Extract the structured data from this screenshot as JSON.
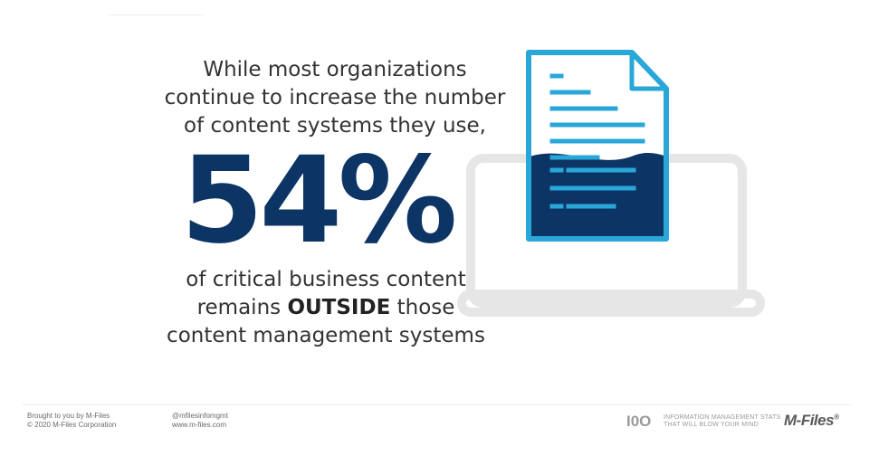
{
  "headline": {
    "intro_lines": [
      "While most organizations",
      "continue to increase the number",
      "of content systems they use,"
    ],
    "stat": "54%",
    "outro_line1": "of critical business content",
    "outro_line2_pre": "remains ",
    "outro_line2_bold": "OUTSIDE",
    "outro_line2_post": " those",
    "outro_line3": "content management systems"
  },
  "footer": {
    "left_line1": "Brought to you by M-Files",
    "left_line2": "© 2020 M-Files Corporation",
    "mid_line1": "@mfilesinfomgmt",
    "mid_line2": "www.m-files.com",
    "brand_mark": "I0O",
    "tagline_line1": "INFORMATION MANAGEMENT STATS",
    "tagline_line2": "THAT WILL BLOW YOUR MIND",
    "logo": "M-Files",
    "logo_mark": "®"
  },
  "illustration": {
    "icons": [
      "laptop-icon",
      "document-icon"
    ],
    "colors": {
      "laptop": "#e6e6e6",
      "doc_border": "#2aa7d9",
      "doc_fill": "#0c3565",
      "doc_lines": "#2aa7d9",
      "stat": "#0c3565"
    }
  }
}
